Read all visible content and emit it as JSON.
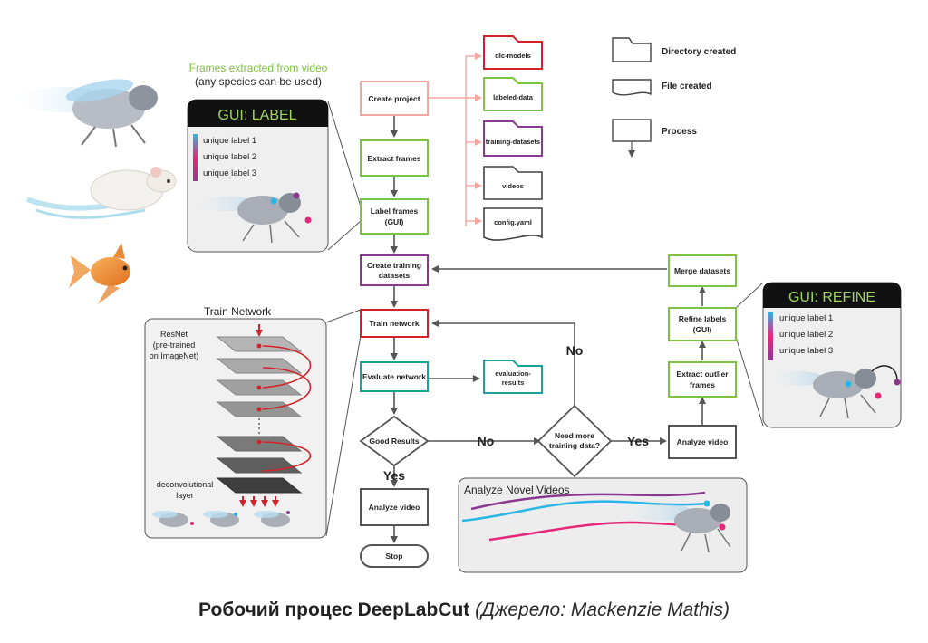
{
  "frames_label": {
    "line1": "Frames extracted from video",
    "line2": "(any species can be used)"
  },
  "gui_label": {
    "title": "GUI: LABEL",
    "labels": [
      "unique label 1",
      "unique label 2",
      "unique label 3"
    ]
  },
  "gui_refine": {
    "title": "GUI: REFINE",
    "labels": [
      "unique label 1",
      "unique label 2",
      "unique label 3"
    ]
  },
  "legend": {
    "directory": "Directory created",
    "file": "File created",
    "process": "Process"
  },
  "processes": {
    "create_project": "Create project",
    "extract_frames": "Extract frames",
    "label_frames_1": "Label frames",
    "label_frames_2": "(GUI)",
    "create_training_1": "Create training",
    "create_training_2": "datasets",
    "train_network": "Train network",
    "evaluate_network": "Evaluate network",
    "good_results": "Good Results",
    "analyze_video_main": "Analyze video",
    "stop": "Stop",
    "need_more_1": "Need more",
    "need_more_2": "training data?",
    "analyze_video_right": "Analyze video",
    "extract_outlier_1": "Extract outlier",
    "extract_outlier_2": "frames",
    "refine_labels_1": "Refine labels",
    "refine_labels_2": "(GUI)",
    "merge_datasets": "Merge datasets"
  },
  "directories": {
    "dlc_models": "dlc-models",
    "labeled_data": "labeled-data",
    "training_datasets": "training-datasets",
    "videos": "videos",
    "config": "config.yaml",
    "evaluation_1": "evaluation-",
    "evaluation_2": "results"
  },
  "edges": {
    "yes_1": "Yes",
    "no_1": "No",
    "yes_2": "Yes",
    "no_2": "No"
  },
  "train_panel": {
    "title": "Train Network",
    "resnet_1": "ResNet",
    "resnet_2": "(pre-trained",
    "resnet_3": "on ImageNet)",
    "deconv_1": "deconvolutional",
    "deconv_2": "layer"
  },
  "analyze_panel": {
    "title": "Analyze Novel Videos"
  },
  "caption": {
    "bold": "Робочий процес DeepLabCut",
    "italic": "(Джерело: Mackenzie Mathis)"
  },
  "colors": {
    "pink": "#f4a6a0",
    "green": "#7dc242",
    "purple": "#8a3a8e",
    "red": "#d2232a",
    "teal": "#1aa39a",
    "dark": "#4a4a4a",
    "cyan": "#2bb6e6",
    "magenta": "#e6287a"
  }
}
